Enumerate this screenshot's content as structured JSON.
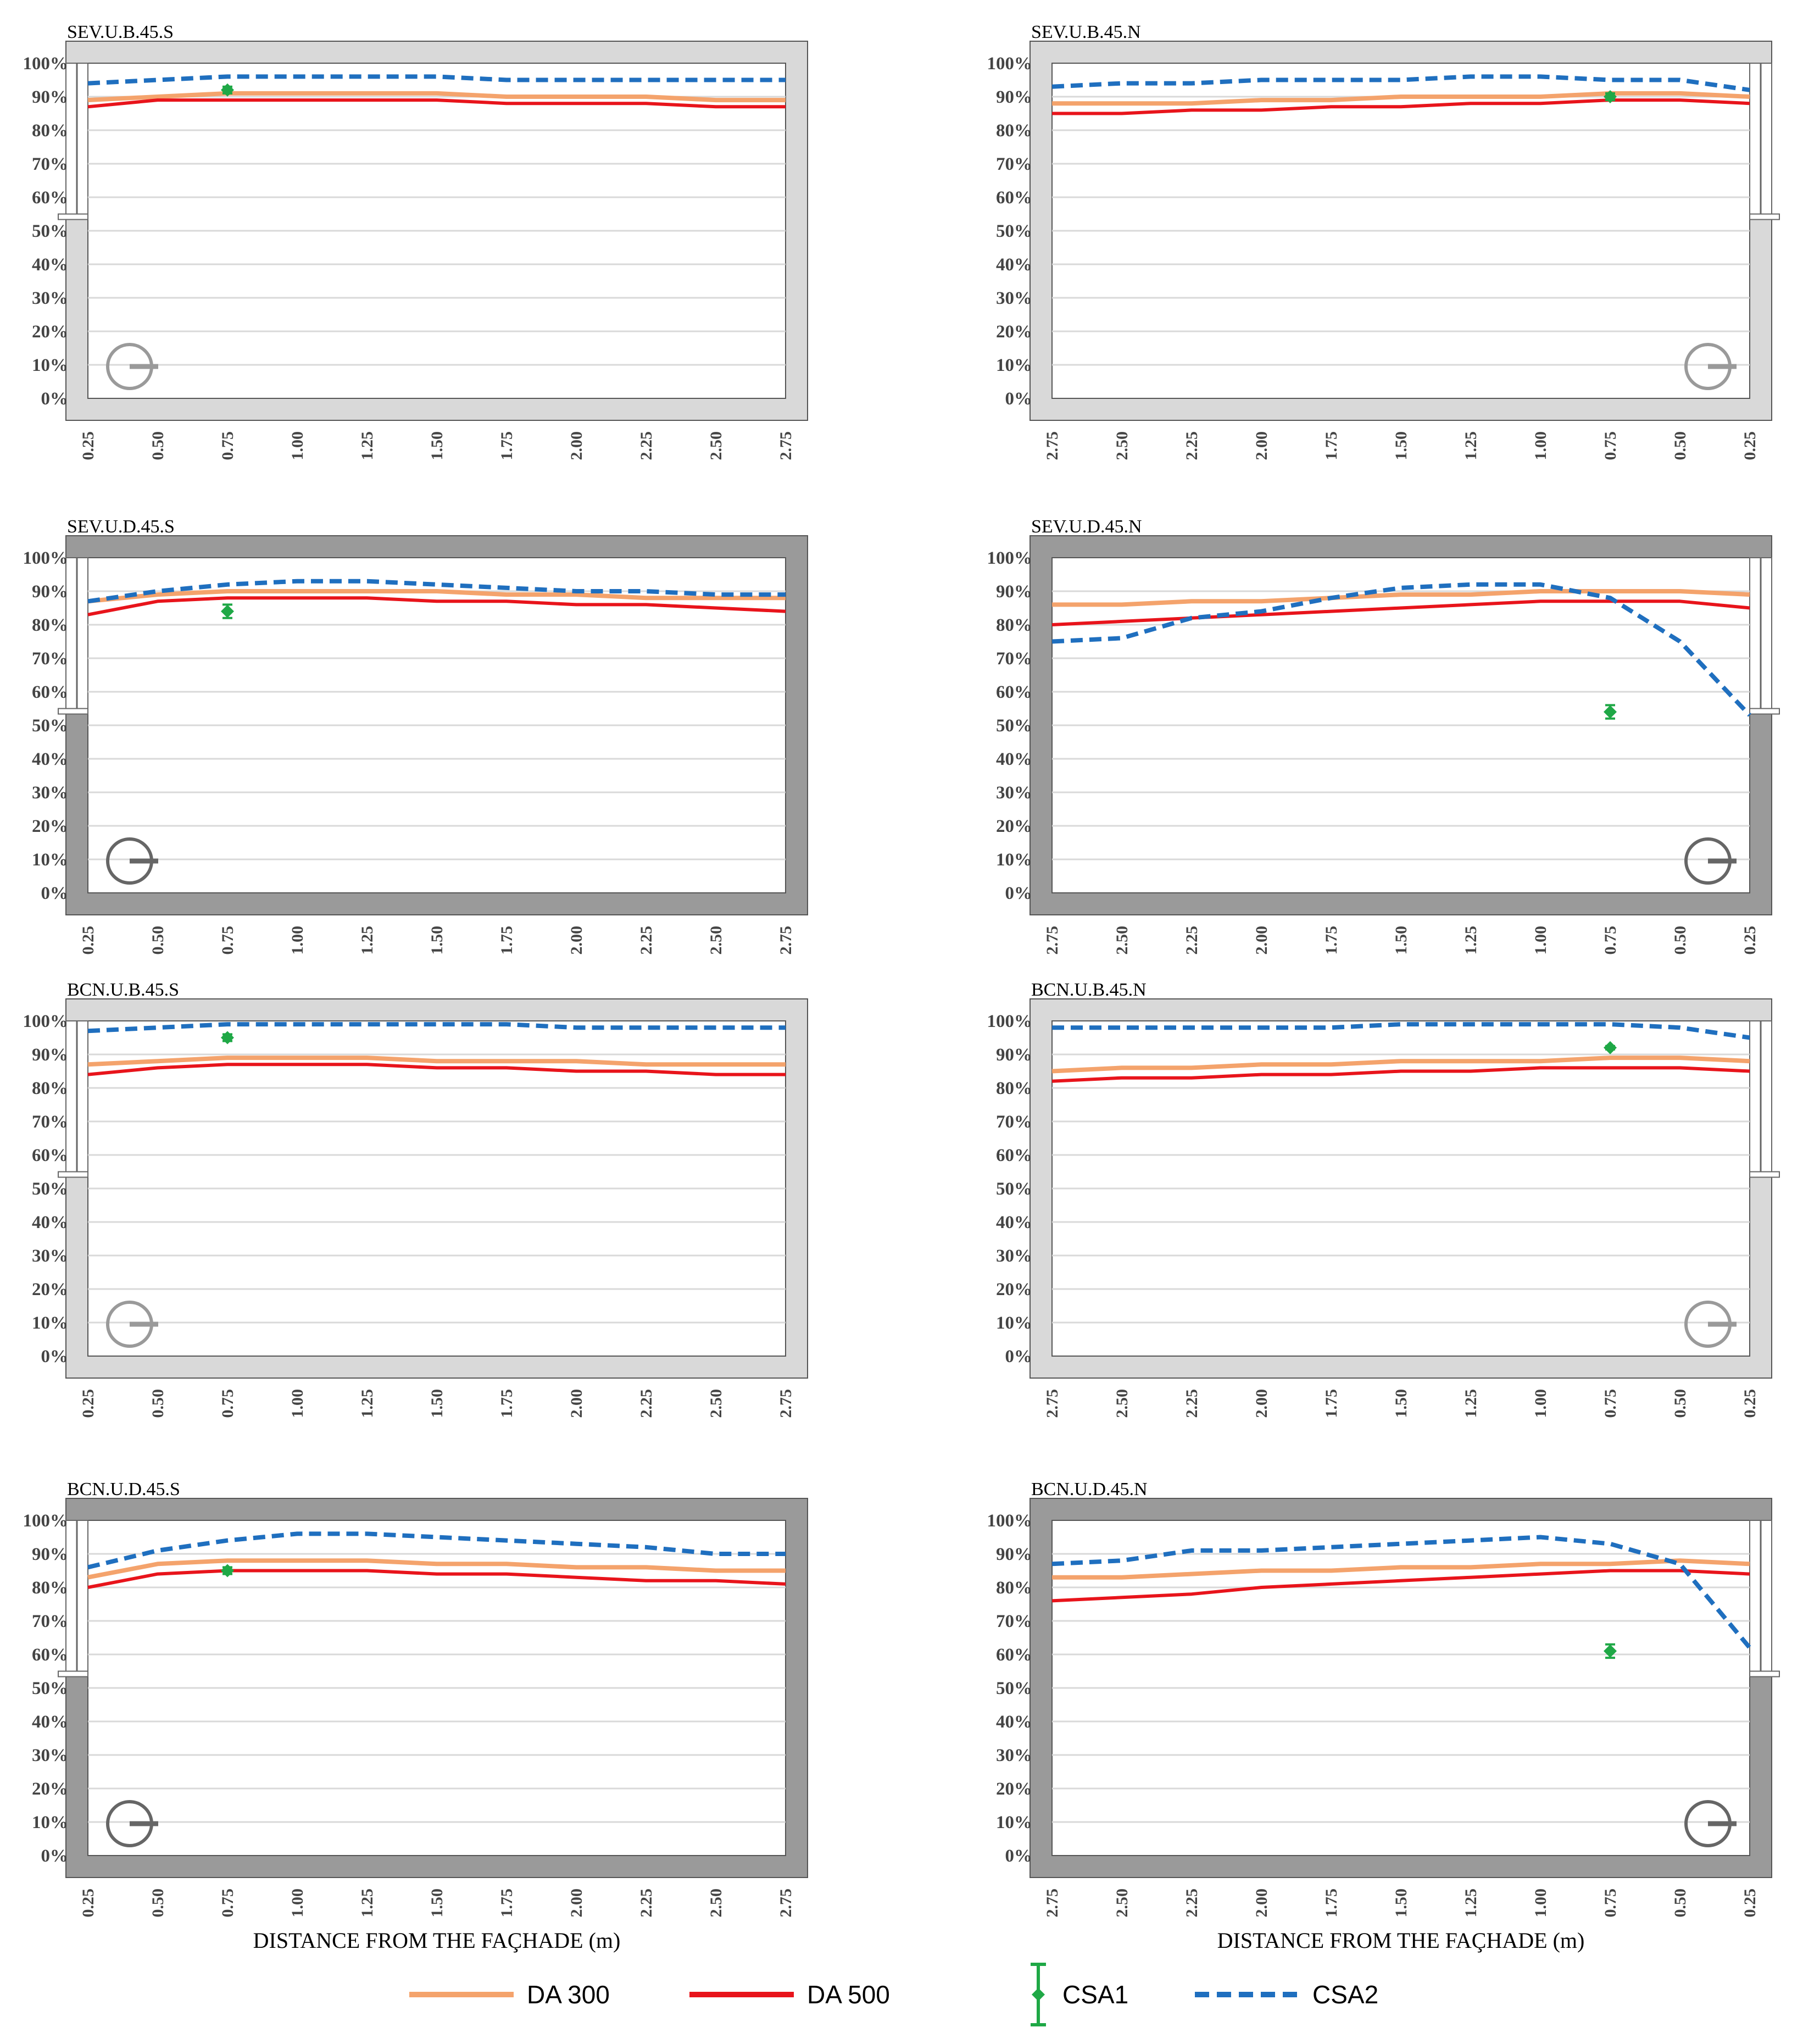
{
  "colors": {
    "da300": "#f4a36c",
    "da500": "#e8141b",
    "csa1": "#1fa846",
    "csa2": "#1f6fbf",
    "frame_light": "#d9d9d9",
    "frame_dark": "#9a9a9a",
    "grid": "#d9d9d9"
  },
  "legend": {
    "da300": "DA 300",
    "da500": "DA 500",
    "csa1": "CSA1",
    "csa2": "CSA2"
  },
  "chart_data": [
    {
      "type": "line",
      "title": "SEV.U.B.45.S",
      "variant": "light",
      "facade": "left",
      "xlabel": "",
      "x": [
        0.25,
        0.5,
        0.75,
        1.0,
        1.25,
        1.5,
        1.75,
        2.0,
        2.25,
        2.5,
        2.75
      ],
      "xticks": [
        "0.25",
        "0.50",
        "0.75",
        "1.00",
        "1.25",
        "1.50",
        "1.75",
        "2.00",
        "2.25",
        "2.50",
        "2.75"
      ],
      "yticks": [
        "0%",
        "10%",
        "20%",
        "30%",
        "40%",
        "50%",
        "60%",
        "70%",
        "80%",
        "90%",
        "100%"
      ],
      "ylim": [
        0,
        100
      ],
      "series": [
        {
          "name": "DA 300",
          "values": [
            89,
            90,
            91,
            91,
            91,
            91,
            90,
            90,
            90,
            89,
            89
          ]
        },
        {
          "name": "DA 500",
          "values": [
            87,
            89,
            89,
            89,
            89,
            89,
            88,
            88,
            88,
            87,
            87
          ]
        },
        {
          "name": "CSA2",
          "values": [
            94,
            95,
            96,
            96,
            96,
            96,
            95,
            95,
            95,
            95,
            95
          ]
        }
      ],
      "csa1": {
        "x": 0.75,
        "value": 92,
        "low": 91,
        "high": 93
      }
    },
    {
      "type": "line",
      "title": "SEV.U.B.45.N",
      "variant": "light",
      "facade": "right",
      "xlabel": "",
      "x": [
        2.75,
        2.5,
        2.25,
        2.0,
        1.75,
        1.5,
        1.25,
        1.0,
        0.75,
        0.5,
        0.25
      ],
      "xticks": [
        "2.75",
        "2.50",
        "2.25",
        "2.00",
        "1.75",
        "1.50",
        "1.25",
        "1.00",
        "0.75",
        "0.50",
        "0.25"
      ],
      "yticks": [
        "0%",
        "10%",
        "20%",
        "30%",
        "40%",
        "50%",
        "60%",
        "70%",
        "80%",
        "90%",
        "100%"
      ],
      "ylim": [
        0,
        100
      ],
      "series": [
        {
          "name": "DA 300",
          "values": [
            88,
            88,
            88,
            89,
            89,
            90,
            90,
            90,
            91,
            91,
            90
          ]
        },
        {
          "name": "DA 500",
          "values": [
            85,
            85,
            86,
            86,
            87,
            87,
            88,
            88,
            89,
            89,
            88
          ]
        },
        {
          "name": "CSA2",
          "values": [
            93,
            94,
            94,
            95,
            95,
            95,
            96,
            96,
            95,
            95,
            92
          ]
        }
      ],
      "csa1": {
        "x": 0.75,
        "value": 90,
        "low": 89,
        "high": 91
      }
    },
    {
      "type": "line",
      "title": "SEV.U.D.45.S",
      "variant": "dark",
      "facade": "left",
      "xlabel": "",
      "x": [
        0.25,
        0.5,
        0.75,
        1.0,
        1.25,
        1.5,
        1.75,
        2.0,
        2.25,
        2.5,
        2.75
      ],
      "xticks": [
        "0.25",
        "0.50",
        "0.75",
        "1.00",
        "1.25",
        "1.50",
        "1.75",
        "2.00",
        "2.25",
        "2.50",
        "2.75"
      ],
      "yticks": [
        "0%",
        "10%",
        "20%",
        "30%",
        "40%",
        "50%",
        "60%",
        "70%",
        "80%",
        "90%",
        "100%"
      ],
      "ylim": [
        0,
        100
      ],
      "series": [
        {
          "name": "DA 300",
          "values": [
            87,
            89,
            90,
            90,
            90,
            90,
            89,
            89,
            88,
            88,
            88
          ]
        },
        {
          "name": "DA 500",
          "values": [
            83,
            87,
            88,
            88,
            88,
            87,
            87,
            86,
            86,
            85,
            84
          ]
        },
        {
          "name": "CSA2",
          "values": [
            87,
            90,
            92,
            93,
            93,
            92,
            91,
            90,
            90,
            89,
            89
          ]
        }
      ],
      "csa1": {
        "x": 0.75,
        "value": 84,
        "low": 82,
        "high": 86
      }
    },
    {
      "type": "line",
      "title": "SEV.U.D.45.N",
      "variant": "dark",
      "facade": "right",
      "xlabel": "",
      "x": [
        2.75,
        2.5,
        2.25,
        2.0,
        1.75,
        1.5,
        1.25,
        1.0,
        0.75,
        0.5,
        0.25
      ],
      "xticks": [
        "2.75",
        "2.50",
        "2.25",
        "2.00",
        "1.75",
        "1.50",
        "1.25",
        "1.00",
        "0.75",
        "0.50",
        "0.25"
      ],
      "yticks": [
        "0%",
        "10%",
        "20%",
        "30%",
        "40%",
        "50%",
        "60%",
        "70%",
        "80%",
        "90%",
        "100%"
      ],
      "ylim": [
        0,
        100
      ],
      "series": [
        {
          "name": "DA 300",
          "values": [
            86,
            86,
            87,
            87,
            88,
            89,
            89,
            90,
            90,
            90,
            89
          ]
        },
        {
          "name": "DA 500",
          "values": [
            80,
            81,
            82,
            83,
            84,
            85,
            86,
            87,
            87,
            87,
            85
          ]
        },
        {
          "name": "CSA2",
          "values": [
            75,
            76,
            82,
            84,
            88,
            91,
            92,
            92,
            88,
            75,
            53
          ]
        }
      ],
      "csa1": {
        "x": 0.75,
        "value": 54,
        "low": 52,
        "high": 56
      }
    },
    {
      "type": "line",
      "title": "BCN.U.B.45.S",
      "variant": "light",
      "facade": "left",
      "xlabel": "",
      "x": [
        0.25,
        0.5,
        0.75,
        1.0,
        1.25,
        1.5,
        1.75,
        2.0,
        2.25,
        2.5,
        2.75
      ],
      "xticks": [
        "0.25",
        "0.50",
        "0.75",
        "1.00",
        "1.25",
        "1.50",
        "1.75",
        "2.00",
        "2.25",
        "2.50",
        "2.75"
      ],
      "yticks": [
        "0%",
        "10%",
        "20%",
        "30%",
        "40%",
        "50%",
        "60%",
        "70%",
        "80%",
        "90%",
        "100%"
      ],
      "ylim": [
        0,
        100
      ],
      "series": [
        {
          "name": "DA 300",
          "values": [
            87,
            88,
            89,
            89,
            89,
            88,
            88,
            88,
            87,
            87,
            87
          ]
        },
        {
          "name": "DA 500",
          "values": [
            84,
            86,
            87,
            87,
            87,
            86,
            86,
            85,
            85,
            84,
            84
          ]
        },
        {
          "name": "CSA2",
          "values": [
            97,
            98,
            99,
            99,
            99,
            99,
            99,
            98,
            98,
            98,
            98
          ]
        }
      ],
      "csa1": {
        "x": 0.75,
        "value": 95,
        "low": 94,
        "high": 96
      }
    },
    {
      "type": "line",
      "title": "BCN.U.B.45.N",
      "variant": "light",
      "facade": "right",
      "xlabel": "",
      "x": [
        2.75,
        2.5,
        2.25,
        2.0,
        1.75,
        1.5,
        1.25,
        1.0,
        0.75,
        0.5,
        0.25
      ],
      "xticks": [
        "2.75",
        "2.50",
        "2.25",
        "2.00",
        "1.75",
        "1.50",
        "1.25",
        "1.00",
        "0.75",
        "0.50",
        "0.25"
      ],
      "yticks": [
        "0%",
        "10%",
        "20%",
        "30%",
        "40%",
        "50%",
        "60%",
        "70%",
        "80%",
        "90%",
        "100%"
      ],
      "ylim": [
        0,
        100
      ],
      "series": [
        {
          "name": "DA 300",
          "values": [
            85,
            86,
            86,
            87,
            87,
            88,
            88,
            88,
            89,
            89,
            88
          ]
        },
        {
          "name": "DA 500",
          "values": [
            82,
            83,
            83,
            84,
            84,
            85,
            85,
            86,
            86,
            86,
            85
          ]
        },
        {
          "name": "CSA2",
          "values": [
            98,
            98,
            98,
            98,
            98,
            99,
            99,
            99,
            99,
            98,
            95
          ]
        }
      ],
      "csa1": {
        "x": 0.75,
        "value": 92,
        "low": 91.5,
        "high": 92.5
      }
    },
    {
      "type": "line",
      "title": "BCN.U.D.45.S",
      "variant": "dark",
      "facade": "left",
      "xlabel": "DISTANCE FROM THE FAÇHADE (m)",
      "x": [
        0.25,
        0.5,
        0.75,
        1.0,
        1.25,
        1.5,
        1.75,
        2.0,
        2.25,
        2.5,
        2.75
      ],
      "xticks": [
        "0.25",
        "0.50",
        "0.75",
        "1.00",
        "1.25",
        "1.50",
        "1.75",
        "2.00",
        "2.25",
        "2.50",
        "2.75"
      ],
      "yticks": [
        "0%",
        "10%",
        "20%",
        "30%",
        "40%",
        "50%",
        "60%",
        "70%",
        "80%",
        "90%",
        "100%"
      ],
      "ylim": [
        0,
        100
      ],
      "series": [
        {
          "name": "DA 300",
          "values": [
            83,
            87,
            88,
            88,
            88,
            87,
            87,
            86,
            86,
            85,
            85
          ]
        },
        {
          "name": "DA 500",
          "values": [
            80,
            84,
            85,
            85,
            85,
            84,
            84,
            83,
            82,
            82,
            81
          ]
        },
        {
          "name": "CSA2",
          "values": [
            86,
            91,
            94,
            96,
            96,
            95,
            94,
            93,
            92,
            90,
            90
          ]
        }
      ],
      "csa1": {
        "x": 0.75,
        "value": 85,
        "low": 84,
        "high": 86
      }
    },
    {
      "type": "line",
      "title": "BCN.U.D.45.N",
      "variant": "dark",
      "facade": "right",
      "xlabel": "DISTANCE FROM THE FAÇHADE (m)",
      "x": [
        2.75,
        2.5,
        2.25,
        2.0,
        1.75,
        1.5,
        1.25,
        1.0,
        0.75,
        0.5,
        0.25
      ],
      "xticks": [
        "2.75",
        "2.50",
        "2.25",
        "2.00",
        "1.75",
        "1.50",
        "1.25",
        "1.00",
        "0.75",
        "0.50",
        "0.25"
      ],
      "yticks": [
        "0%",
        "10%",
        "20%",
        "30%",
        "40%",
        "50%",
        "60%",
        "70%",
        "80%",
        "90%",
        "100%"
      ],
      "ylim": [
        0,
        100
      ],
      "series": [
        {
          "name": "DA 300",
          "values": [
            83,
            83,
            84,
            85,
            85,
            86,
            86,
            87,
            87,
            88,
            87
          ]
        },
        {
          "name": "DA 500",
          "values": [
            76,
            77,
            78,
            80,
            81,
            82,
            83,
            84,
            85,
            85,
            84
          ]
        },
        {
          "name": "CSA2",
          "values": [
            87,
            88,
            91,
            91,
            92,
            93,
            94,
            95,
            93,
            87,
            62
          ]
        }
      ],
      "csa1": {
        "x": 0.75,
        "value": 61,
        "low": 59,
        "high": 63
      }
    }
  ]
}
